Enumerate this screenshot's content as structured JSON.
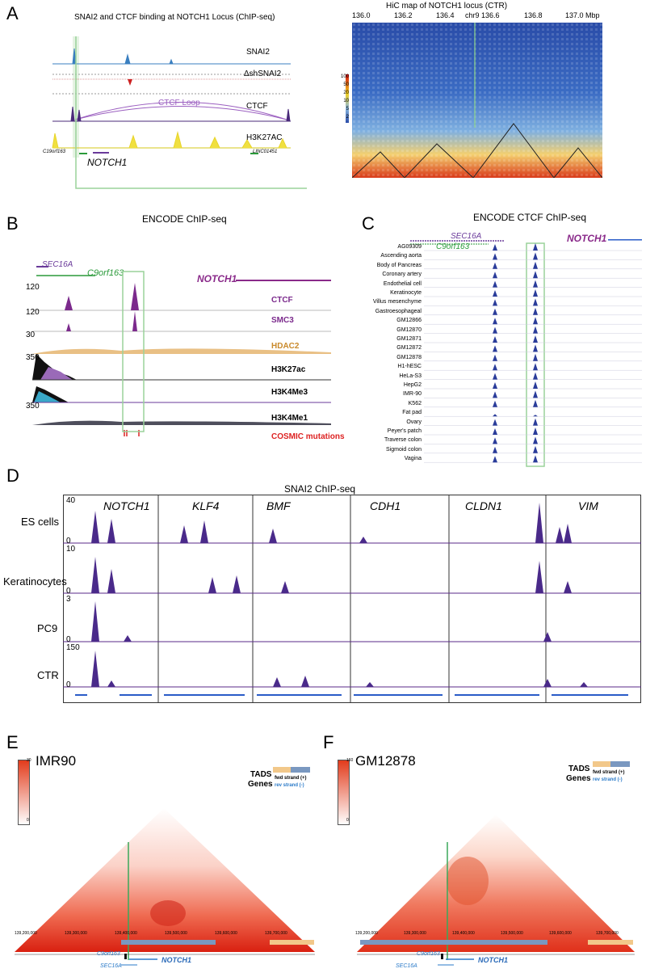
{
  "panelA": {
    "label": "A",
    "title": "SNAI2 and CTCF binding at NOTCH1 Locus (ChIP-seq)",
    "tracks": [
      "SNAI2",
      "ΔshSNAI2",
      "CTCF",
      "H3K27AC"
    ],
    "loop_label": "CTCF Loop",
    "gene_left": "C19orf163",
    "gene_right": "LINC01451",
    "gene_main": "NOTCH1",
    "hic_title": "HiC map of NOTCH1 locus (CTR)",
    "hic_ticks": [
      "136.0",
      "136.2",
      "136.4",
      "chr9",
      "136.6",
      "136.8",
      "137.0 Mbp"
    ],
    "scale_ticks": [
      "100",
      "50",
      "20",
      "10",
      "5",
      "2"
    ]
  },
  "panelB": {
    "label": "B",
    "title": "ENCODE ChIP-seq",
    "genes": [
      "SEC16A",
      "C9orf163",
      "NOTCH1"
    ],
    "tracks": [
      {
        "name": "CTCF",
        "max": "120",
        "color": "#7b2a8c"
      },
      {
        "name": "SMC3",
        "max": "120",
        "color": "#7b2a8c"
      },
      {
        "name": "HDAC2",
        "max": "30",
        "color": "#c98a2c"
      },
      {
        "name": "H3K27ac",
        "max": "350",
        "color": "#000000"
      },
      {
        "name": "H3K4Me3",
        "max": "",
        "color": "#000000"
      },
      {
        "name": "H3K4Me1",
        "max": "350",
        "color": "#000000"
      }
    ],
    "cosmic": "COSMIC mutations"
  },
  "panelC": {
    "label": "C",
    "title": "ENCODE CTCF ChIP-seq",
    "genes": [
      "SEC16A",
      "C9orf163",
      "NOTCH1"
    ],
    "samples": [
      "AG09309",
      "Ascending aorta",
      "Body of Pancreas",
      "Coronary artery",
      "Endothelial cell",
      "Keratinocyte",
      "Villus mesenchyme",
      "Gastroesophageal",
      "GM12866",
      "GM12870",
      "GM12871",
      "GM12872",
      "GM12878",
      "H1-hESC",
      "HeLa-S3",
      "HepG2",
      "IMR-90",
      "K562",
      "Fat pad",
      "Ovary",
      "Peyer's patch",
      "Traverse colon",
      "Sigmoid colon",
      "Vagina"
    ]
  },
  "panelD": {
    "label": "D",
    "title": "SNAI2 ChIP-seq",
    "genes": [
      "NOTCH1",
      "KLF4",
      "BMF",
      "CDH1",
      "CLDN1",
      "VIM"
    ],
    "rows": [
      {
        "name": "ES cells",
        "max": "40",
        "min": "0"
      },
      {
        "name": "Keratinocytes",
        "max": "10",
        "min": "0"
      },
      {
        "name": "PC9",
        "max": "3",
        "min": "0"
      },
      {
        "name": "CTR",
        "max": "150",
        "min": "0"
      }
    ]
  },
  "panelE": {
    "label": "E",
    "cell": "IMR90",
    "scale_max": "30",
    "scale_min": "0",
    "legend_tads": "TADS",
    "legend_genes": "Genes",
    "fwd": "fwd strand (+)",
    "rev": "rev strand  (-)",
    "ticks": [
      "139,200,000",
      "139,300,000",
      "139,400,000",
      "139,500,000",
      "139,600,000",
      "139,700,000"
    ],
    "genes": [
      "C9orf163",
      "SEC16A",
      "NOTCH1"
    ]
  },
  "panelF": {
    "label": "F",
    "cell": "GM12878",
    "scale_max": "160",
    "scale_min": "0",
    "legend_tads": "TADS",
    "legend_genes": "Genes",
    "fwd": "fwd strand (+)",
    "rev": "rev strand  (-)",
    "ticks": [
      "139,200,000",
      "139,300,000",
      "139,400,000",
      "139,500,000",
      "139,600,000",
      "139,700,000"
    ],
    "genes": [
      "C9orf163",
      "SEC16A",
      "NOTCH1"
    ]
  }
}
